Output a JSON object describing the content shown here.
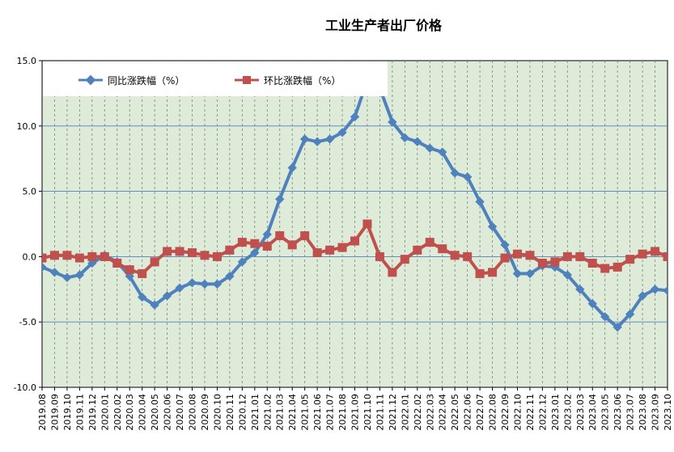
{
  "chart_data": {
    "type": "line",
    "title": "工业生产者出厂价格",
    "xlabel": "",
    "ylabel": "",
    "ylim": [
      -10,
      15
    ],
    "yticks": [
      "15.0",
      "10.0",
      "5.0",
      "0.0",
      "-5.0",
      "-10.0"
    ],
    "grid": true,
    "legend_position": "top-left",
    "categories": [
      "2019.08",
      "2019.09",
      "2019.10",
      "2019.11",
      "2019.12",
      "2020.01",
      "2020.02",
      "2020.03",
      "2020.04",
      "2020.05",
      "2020.06",
      "2020.07",
      "2020.08",
      "2020.09",
      "2020.10",
      "2020.11",
      "2020.12",
      "2021.01",
      "2021.02",
      "2021.03",
      "2021.04",
      "2021.05",
      "2021.06",
      "2021.07",
      "2021.08",
      "2021.09",
      "2021.10",
      "2021.11",
      "2021.12",
      "2022.01",
      "2022.02",
      "2022.03",
      "2022.04",
      "2022.05",
      "2022.06",
      "2022.07",
      "2022.08",
      "2022.09",
      "2022.10",
      "2022.11",
      "2022.12",
      "2023.01",
      "2023.02",
      "2023.03",
      "2023.04",
      "2023.05",
      "2023.06",
      "2023.07",
      "2023.08",
      "2023.09",
      "2023.10"
    ],
    "series": [
      {
        "name": "同比涨跌幅（%）",
        "color": "#4f81bd",
        "marker": "diamond",
        "values": [
          -0.8,
          -1.2,
          -1.6,
          -1.4,
          -0.5,
          0.1,
          -0.4,
          -1.5,
          -3.1,
          -3.7,
          -3.0,
          -2.4,
          -2.0,
          -2.1,
          -2.1,
          -1.5,
          -0.4,
          0.3,
          1.7,
          4.4,
          6.8,
          9.0,
          8.8,
          9.0,
          9.5,
          10.7,
          13.5,
          12.9,
          10.3,
          9.1,
          8.8,
          8.3,
          8.0,
          6.4,
          6.1,
          4.2,
          2.3,
          0.9,
          -1.3,
          -1.3,
          -0.7,
          -0.8,
          -1.4,
          -2.5,
          -3.6,
          -4.6,
          -5.4,
          -4.4,
          -3.0,
          -2.5,
          -2.6
        ]
      },
      {
        "name": "环比涨跌幅（%）",
        "color": "#c0504d",
        "marker": "square",
        "values": [
          -0.1,
          0.1,
          0.1,
          -0.1,
          0.0,
          0.0,
          -0.5,
          -1.0,
          -1.3,
          -0.4,
          0.4,
          0.4,
          0.3,
          0.1,
          0.0,
          0.5,
          1.1,
          1.0,
          0.8,
          1.6,
          0.9,
          1.6,
          0.3,
          0.5,
          0.7,
          1.2,
          2.5,
          0.0,
          -1.2,
          -0.2,
          0.5,
          1.1,
          0.6,
          0.1,
          0.0,
          -1.3,
          -1.2,
          -0.1,
          0.2,
          0.1,
          -0.5,
          -0.4,
          0.0,
          0.0,
          -0.5,
          -0.9,
          -0.8,
          -0.2,
          0.2,
          0.4,
          0.0
        ]
      }
    ]
  }
}
